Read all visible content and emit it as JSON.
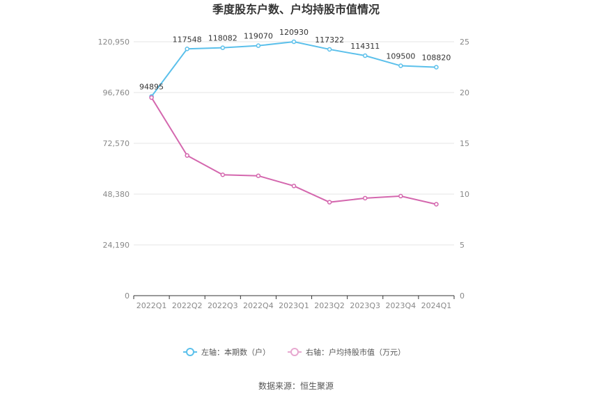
{
  "chart_data": {
    "type": "line",
    "title": "季度股东户数、户均持股市值情况",
    "categories": [
      "2022Q1",
      "2022Q2",
      "2022Q3",
      "2022Q4",
      "2023Q1",
      "2023Q2",
      "2023Q3",
      "2023Q4",
      "2024Q1"
    ],
    "left_axis": {
      "ticks": [
        "0",
        "24,190",
        "48,380",
        "72,570",
        "96,760",
        "120,950"
      ],
      "ylim": [
        0,
        120950
      ]
    },
    "right_axis": {
      "ticks": [
        "0",
        "5",
        "10",
        "15",
        "20",
        "25"
      ],
      "ylim": [
        0,
        25
      ]
    },
    "series": [
      {
        "name": "左轴：本期数（户）",
        "axis": "left",
        "color": "#5bc0eb",
        "values": [
          94895,
          117548,
          118082,
          119070,
          120930,
          117322,
          114311,
          109500,
          108820
        ],
        "labels": [
          "94895",
          "117548",
          "118082",
          "119070",
          "120930",
          "117322",
          "114311",
          "109500",
          "108820"
        ]
      },
      {
        "name": "右轴：户均持股市值（万元）",
        "axis": "right",
        "color": "#d467ae",
        "values": [
          19.5,
          13.8,
          11.9,
          11.8,
          10.8,
          9.2,
          9.6,
          9.8,
          9.0
        ]
      }
    ],
    "grid": true,
    "legend_position": "bottom"
  },
  "footer": {
    "source": "数据来源：恒生聚源"
  }
}
